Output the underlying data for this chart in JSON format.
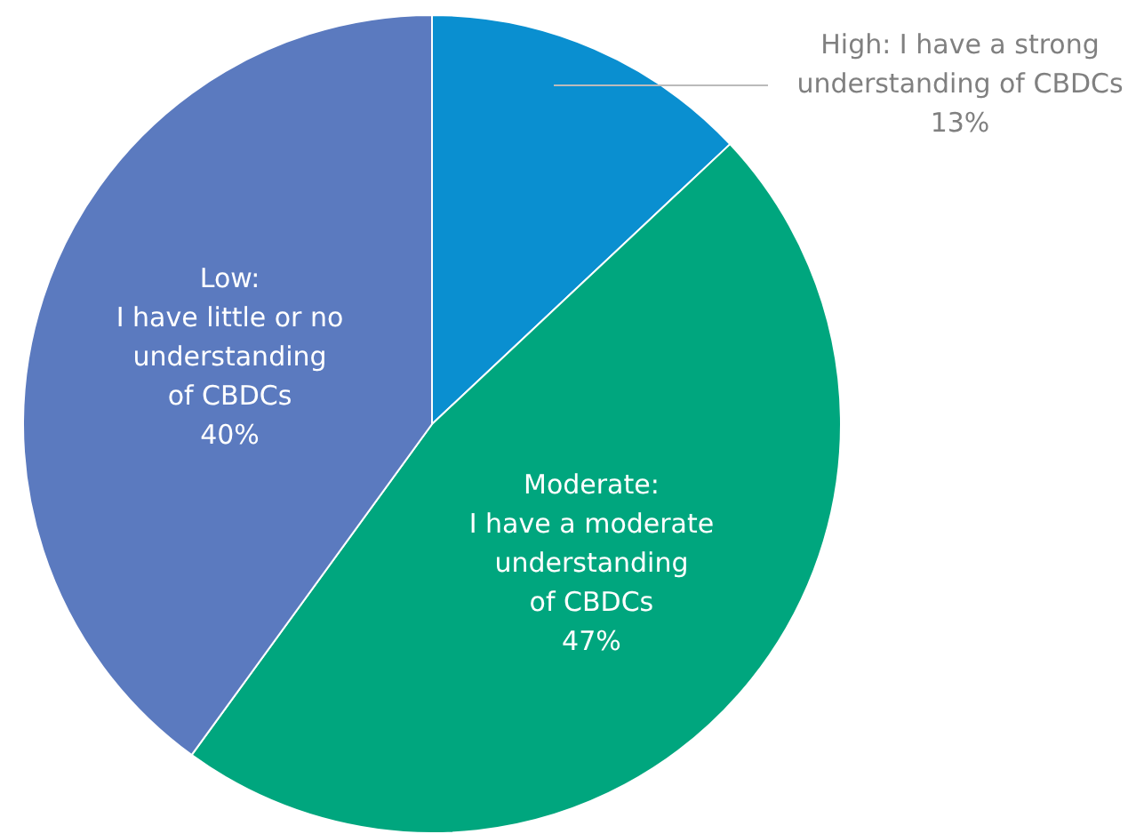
{
  "chart_data": {
    "type": "pie",
    "categories": [
      "High: I have a strong\nunderstanding of CBDCs",
      "Moderate:\nI have a moderate\nunderstanding\nof CBDCs",
      "Low:\nI have little or no\nunderstanding\nof CBDCs"
    ],
    "values": [
      13,
      47,
      40
    ],
    "value_labels": [
      "13%",
      "47%",
      "40%"
    ],
    "colors": [
      "#0a8fd0",
      "#00a67e",
      "#5b7abf"
    ],
    "legend": false
  }
}
